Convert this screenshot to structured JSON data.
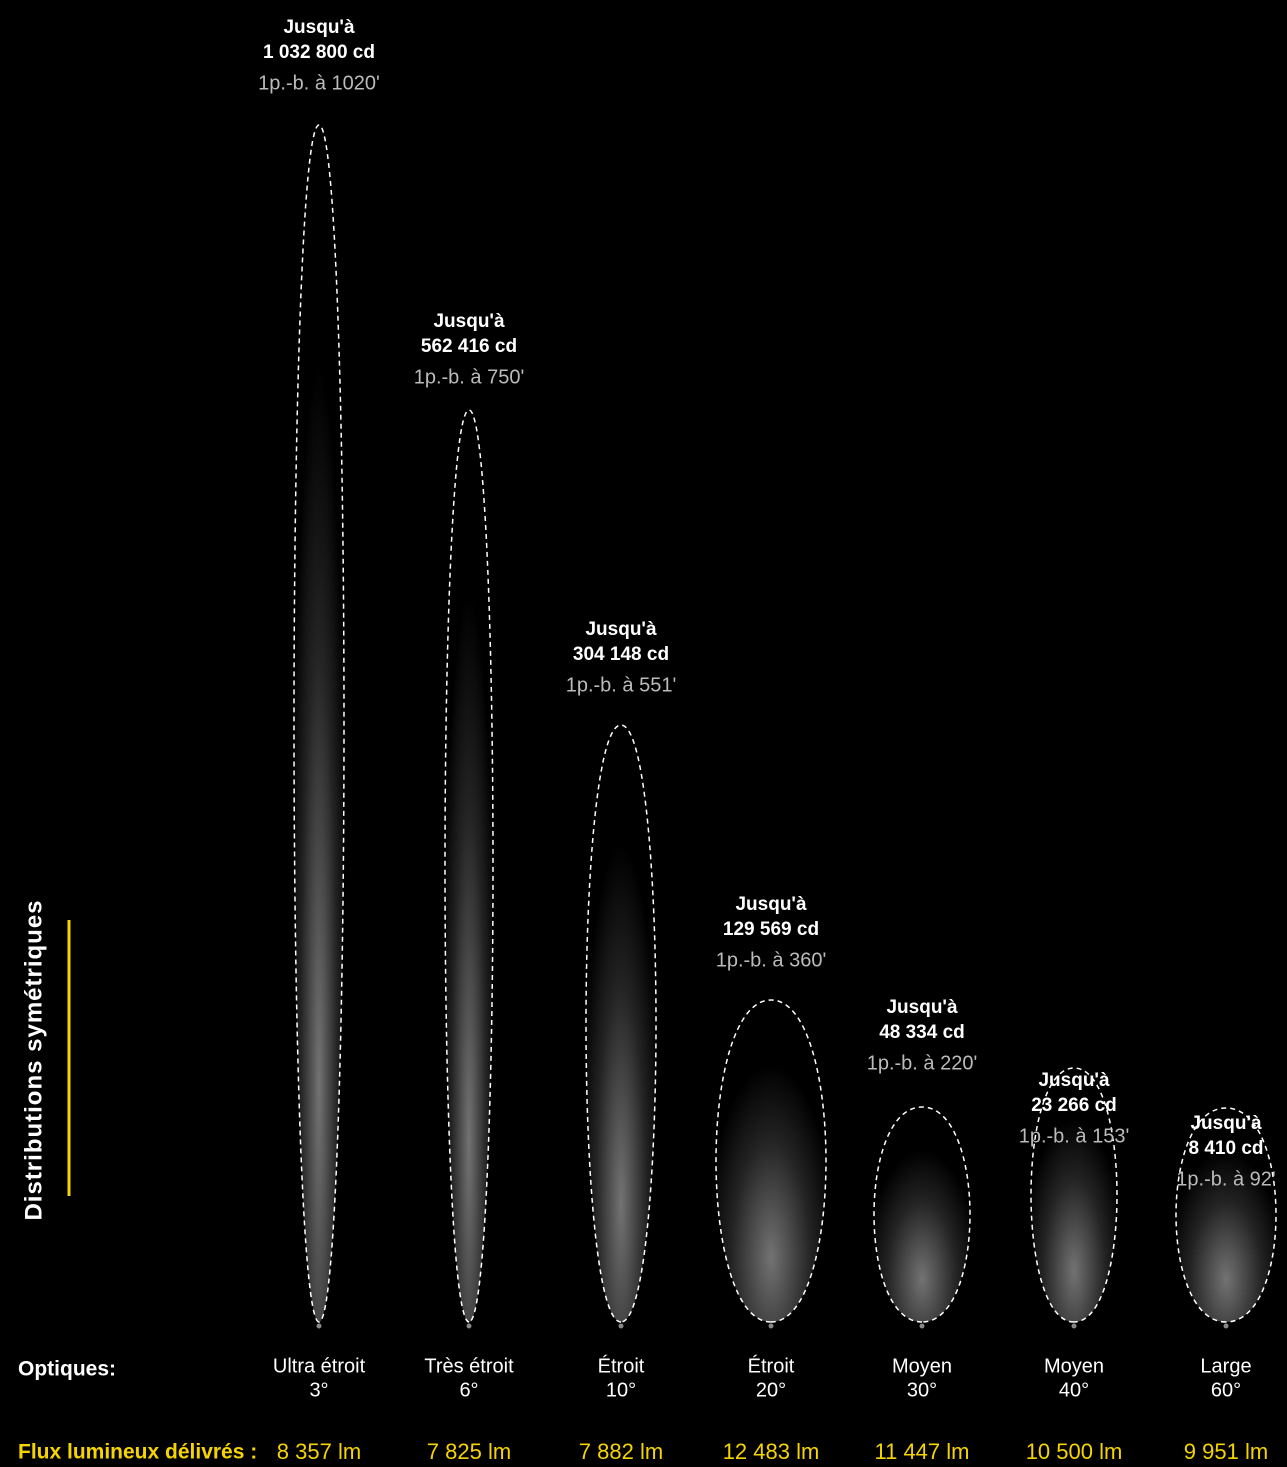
{
  "side_label": "Distributions symétriques",
  "row_labels": {
    "optics": "Optiques:",
    "flux": "Flux lumineux délivrés :"
  },
  "beams": [
    {
      "heading": "Jusqu'à",
      "intensity": "1 032 800 cd",
      "distance": "1p.-b. à 1020'",
      "optic": "Ultra étroit",
      "angle": "3°",
      "flux": "8 357 lm"
    },
    {
      "heading": "Jusqu'à",
      "intensity": "562 416 cd",
      "distance": "1p.-b. à 750'",
      "optic": "Très étroit",
      "angle": "6°",
      "flux": "7 825 lm"
    },
    {
      "heading": "Jusqu'à",
      "intensity": "304 148 cd",
      "distance": "1p.-b. à 551'",
      "optic": "Étroit",
      "angle": "10°",
      "flux": "7 882 lm"
    },
    {
      "heading": "Jusqu'à",
      "intensity": "129 569 cd",
      "distance": "1p.-b. à 360'",
      "optic": "Étroit",
      "angle": "20°",
      "flux": "12 483 lm"
    },
    {
      "heading": "Jusqu'à",
      "intensity": "48 334 cd",
      "distance": "1p.-b. à 220'",
      "optic": "Moyen",
      "angle": "30°",
      "flux": "11 447 lm"
    },
    {
      "heading": "Jusqu'à",
      "intensity": "23 266 cd",
      "distance": "1p.-b. à 153'",
      "optic": "Moyen",
      "angle": "40°",
      "flux": "10 500 lm"
    },
    {
      "heading": "Jusqu'à",
      "intensity": "8 410 cd",
      "distance": "1p.-b. à 92'",
      "optic": "Large",
      "angle": "60°",
      "flux": "9 951 lm"
    }
  ]
}
